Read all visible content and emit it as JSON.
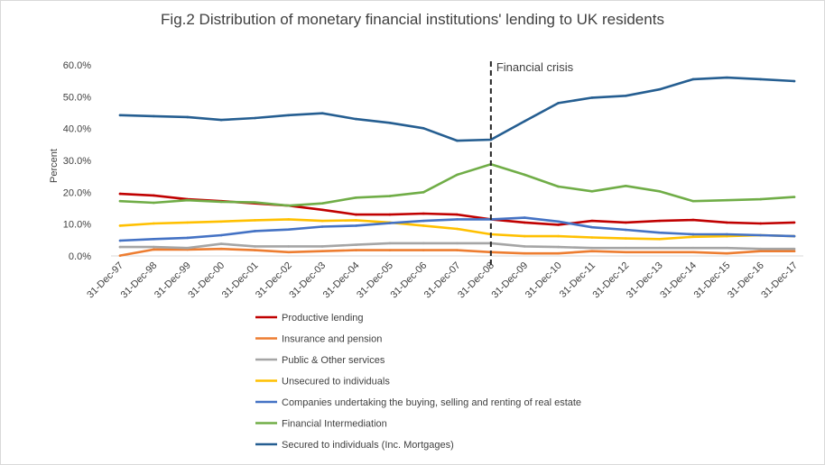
{
  "chart_data": {
    "type": "line",
    "title": "Fig.2  Distribution of monetary financial institutions'  lending to UK residents",
    "ylabel": "Percent",
    "xlabel": "",
    "ylim": [
      0,
      60
    ],
    "y_ticks": [
      "0.0%",
      "10.0%",
      "20.0%",
      "30.0%",
      "40.0%",
      "50.0%",
      "60.0%"
    ],
    "x": [
      "31-Dec-97",
      "31-Dec-98",
      "31-Dec-99",
      "31-Dec-00",
      "31-Dec-01",
      "31-Dec-02",
      "31-Dec-03",
      "31-Dec-04",
      "31-Dec-05",
      "31-Dec-06",
      "31-Dec-07",
      "31-Dec-08",
      "31-Dec-09",
      "31-Dec-10",
      "31-Dec-11",
      "31-Dec-12",
      "31-Dec-13",
      "31-Dec-14",
      "31-Dec-15",
      "31-Dec-16",
      "31-Dec-17"
    ],
    "grid": false,
    "legend_position": "bottom",
    "annotation": {
      "text": "Financial crisis",
      "x": "31-Dec-08",
      "style": "dashed vertical line"
    },
    "series": [
      {
        "name": "Productive lending",
        "color": "#c00000",
        "values": [
          19.5,
          19.0,
          17.8,
          17.2,
          16.5,
          15.8,
          14.5,
          13.0,
          13.0,
          13.3,
          13.0,
          11.5,
          10.5,
          9.8,
          11.0,
          10.5,
          11.0,
          11.3,
          10.5,
          10.2,
          10.5
        ]
      },
      {
        "name": "Insurance and pension",
        "color": "#ed7d31",
        "values": [
          0.1,
          2.0,
          2.0,
          2.2,
          1.8,
          1.2,
          1.5,
          1.8,
          1.8,
          1.8,
          1.8,
          1.2,
          0.8,
          0.8,
          1.5,
          1.2,
          1.2,
          1.2,
          0.8,
          1.5,
          1.5
        ]
      },
      {
        "name": "Public & Other services",
        "color": "#a5a5a5",
        "values": [
          2.8,
          2.8,
          2.5,
          3.8,
          3.0,
          3.0,
          3.0,
          3.5,
          4.0,
          4.0,
          4.0,
          4.0,
          3.0,
          2.8,
          2.5,
          2.5,
          2.5,
          2.5,
          2.5,
          2.2,
          2.2
        ]
      },
      {
        "name": "Unsecured to individuals",
        "color": "#ffc000",
        "values": [
          9.5,
          10.2,
          10.5,
          10.8,
          11.2,
          11.5,
          11.0,
          11.2,
          10.5,
          9.5,
          8.5,
          6.8,
          6.2,
          6.2,
          5.8,
          5.5,
          5.3,
          6.0,
          6.2,
          6.5,
          6.2
        ]
      },
      {
        "name": "Companies undertaking the buying, selling and renting of real estate",
        "color": "#4472c4",
        "values": [
          4.8,
          5.3,
          5.7,
          6.5,
          7.8,
          8.3,
          9.2,
          9.5,
          10.3,
          11.0,
          11.5,
          11.5,
          12.0,
          10.8,
          9.0,
          8.2,
          7.3,
          6.8,
          6.8,
          6.5,
          6.2
        ]
      },
      {
        "name": "Financial Intermediation",
        "color": "#70ad47",
        "values": [
          17.2,
          16.7,
          17.5,
          17.0,
          16.8,
          15.8,
          16.5,
          18.3,
          18.8,
          20.0,
          25.5,
          28.8,
          25.5,
          21.8,
          20.3,
          22.0,
          20.3,
          17.2,
          17.5,
          17.8,
          18.5
        ]
      },
      {
        "name": "Secured to individuals (Inc. Mortgages)",
        "color": "#255e91",
        "values": [
          44.2,
          43.9,
          43.6,
          42.7,
          43.3,
          44.2,
          44.8,
          43.0,
          41.8,
          40.1,
          36.2,
          36.5,
          42.3,
          48.0,
          49.7,
          50.3,
          52.3,
          55.5,
          56.0,
          55.5,
          54.9
        ]
      }
    ]
  }
}
